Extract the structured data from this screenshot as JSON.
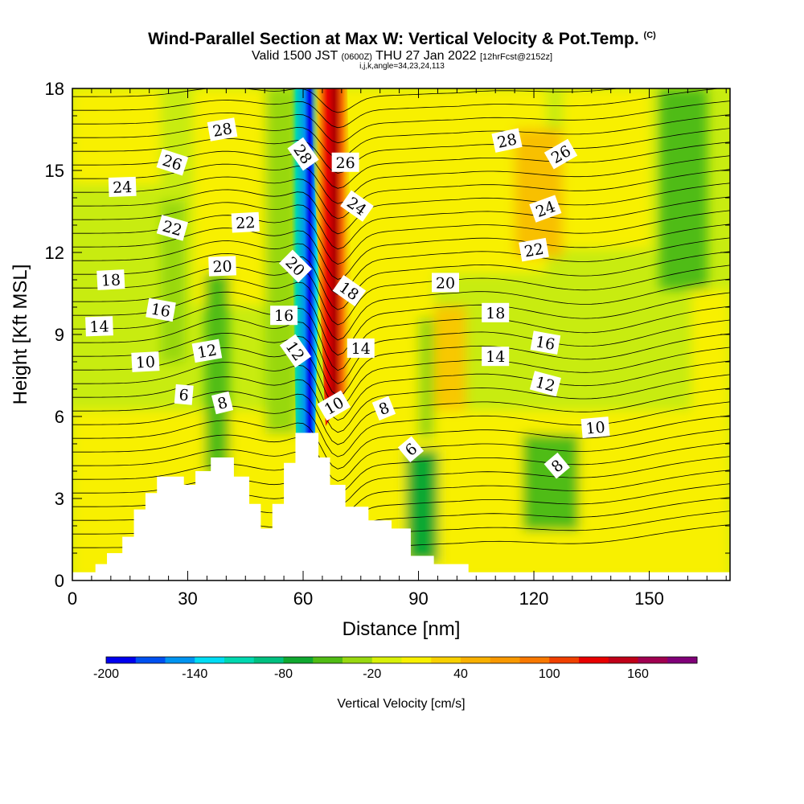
{
  "title": {
    "main": "Wind-Parallel Section at Max W: Vertical Velocity & Pot.Temp.",
    "copyright": "(C)",
    "valid_prefix": "Valid 1500 JST",
    "valid_utc": "(0600Z)",
    "valid_date": "THU 27 Jan 2022",
    "forecast": "[12hrFcst@2152z]",
    "indices": "i,j,k,angle=34,23,24,113"
  },
  "chart_data": {
    "type": "contour",
    "xlabel": "Distance [nm]",
    "ylabel": "Height [Kft MSL]",
    "xlim": [
      0,
      171
    ],
    "ylim": [
      0,
      18
    ],
    "xticks": [
      0,
      30,
      60,
      90,
      120,
      150
    ],
    "yticks": [
      0,
      3,
      6,
      9,
      12,
      15,
      18
    ],
    "colorbar": {
      "label": "Vertical Velocity [cm/s]",
      "min": -200,
      "max": 200,
      "step": 20,
      "tick_labels": [
        "-200",
        "-140",
        "-80",
        "-20",
        "40",
        "100",
        "160"
      ],
      "colors": [
        "#0000ee",
        "#0050f0",
        "#0094f0",
        "#00dcf4",
        "#00d8b0",
        "#00c080",
        "#10a830",
        "#50bc14",
        "#98d810",
        "#d8f008",
        "#f8f000",
        "#f8d000",
        "#f8b000",
        "#f89800",
        "#f87800",
        "#f04000",
        "#e80000",
        "#c00018",
        "#a00050",
        "#800078"
      ]
    },
    "terrain": [
      [
        0,
        0.3
      ],
      [
        6,
        0.3
      ],
      [
        6,
        0.6
      ],
      [
        9,
        0.6
      ],
      [
        9,
        1.0
      ],
      [
        13,
        1.0
      ],
      [
        13,
        1.6
      ],
      [
        16,
        1.6
      ],
      [
        16,
        2.6
      ],
      [
        19,
        2.6
      ],
      [
        19,
        3.2
      ],
      [
        22,
        3.2
      ],
      [
        22,
        3.8
      ],
      [
        29,
        3.8
      ],
      [
        29,
        3.5
      ],
      [
        32,
        3.5
      ],
      [
        32,
        4.0
      ],
      [
        36,
        4.0
      ],
      [
        36,
        4.5
      ],
      [
        42,
        4.5
      ],
      [
        42,
        3.8
      ],
      [
        46,
        3.8
      ],
      [
        46,
        2.8
      ],
      [
        49,
        2.8
      ],
      [
        49,
        1.9
      ],
      [
        52,
        1.9
      ],
      [
        52,
        2.8
      ],
      [
        55,
        2.8
      ],
      [
        55,
        4.3
      ],
      [
        58,
        4.3
      ],
      [
        58,
        5.4
      ],
      [
        64,
        5.4
      ],
      [
        64,
        4.5
      ],
      [
        67,
        4.5
      ],
      [
        67,
        3.5
      ],
      [
        71,
        3.5
      ],
      [
        71,
        2.7
      ],
      [
        77,
        2.7
      ],
      [
        77,
        2.2
      ],
      [
        83,
        2.2
      ],
      [
        83,
        1.9
      ],
      [
        88,
        1.9
      ],
      [
        88,
        0.9
      ],
      [
        94,
        0.9
      ],
      [
        94,
        0.6
      ],
      [
        103,
        0.6
      ],
      [
        103,
        0.3
      ],
      [
        171,
        0.3
      ]
    ],
    "theta_contour_labels": [
      {
        "text": "28",
        "x": 39,
        "y": 16.5,
        "rot": -10
      },
      {
        "text": "26",
        "x": 26,
        "y": 15.3,
        "rot": 18
      },
      {
        "text": "24",
        "x": 13,
        "y": 14.4,
        "rot": -2
      },
      {
        "text": "22",
        "x": 26,
        "y": 12.9,
        "rot": 16
      },
      {
        "text": "22",
        "x": 45,
        "y": 13.1,
        "rot": -3
      },
      {
        "text": "20",
        "x": 39,
        "y": 11.5,
        "rot": -2
      },
      {
        "text": "18",
        "x": 10,
        "y": 11.0,
        "rot": -3
      },
      {
        "text": "16",
        "x": 23,
        "y": 9.9,
        "rot": 10
      },
      {
        "text": "14",
        "x": 7,
        "y": 9.3,
        "rot": -2
      },
      {
        "text": "10",
        "x": 19,
        "y": 8.0,
        "rot": -3
      },
      {
        "text": "12",
        "x": 35,
        "y": 8.4,
        "rot": -10
      },
      {
        "text": "6",
        "x": 29,
        "y": 6.8,
        "rot": 5
      },
      {
        "text": "8",
        "x": 39,
        "y": 6.5,
        "rot": -14
      },
      {
        "text": "28",
        "x": 60,
        "y": 15.6,
        "rot": 55
      },
      {
        "text": "20",
        "x": 58,
        "y": 11.5,
        "rot": 45
      },
      {
        "text": "16",
        "x": 55,
        "y": 9.7,
        "rot": 0
      },
      {
        "text": "12",
        "x": 58,
        "y": 8.4,
        "rot": 55
      },
      {
        "text": "26",
        "x": 71,
        "y": 15.3,
        "rot": 0
      },
      {
        "text": "24",
        "x": 74,
        "y": 13.7,
        "rot": 35
      },
      {
        "text": "18",
        "x": 72,
        "y": 10.6,
        "rot": 35
      },
      {
        "text": "14",
        "x": 75,
        "y": 8.5,
        "rot": 0
      },
      {
        "text": "10",
        "x": 68,
        "y": 6.4,
        "rot": -30
      },
      {
        "text": "8",
        "x": 81,
        "y": 6.3,
        "rot": -22
      },
      {
        "text": "6",
        "x": 88,
        "y": 4.8,
        "rot": -40
      },
      {
        "text": "20",
        "x": 97,
        "y": 10.9,
        "rot": 0
      },
      {
        "text": "28",
        "x": 113,
        "y": 16.1,
        "rot": -12
      },
      {
        "text": "26",
        "x": 127,
        "y": 15.6,
        "rot": -30
      },
      {
        "text": "24",
        "x": 123,
        "y": 13.6,
        "rot": -20
      },
      {
        "text": "22",
        "x": 120,
        "y": 12.1,
        "rot": -10
      },
      {
        "text": "18",
        "x": 110,
        "y": 9.8,
        "rot": 0
      },
      {
        "text": "16",
        "x": 123,
        "y": 8.7,
        "rot": 10
      },
      {
        "text": "14",
        "x": 110,
        "y": 8.2,
        "rot": 0
      },
      {
        "text": "12",
        "x": 123,
        "y": 7.2,
        "rot": 15
      },
      {
        "text": "10",
        "x": 136,
        "y": 5.6,
        "rot": -5
      },
      {
        "text": "8",
        "x": 126,
        "y": 4.2,
        "rot": -40
      }
    ]
  }
}
